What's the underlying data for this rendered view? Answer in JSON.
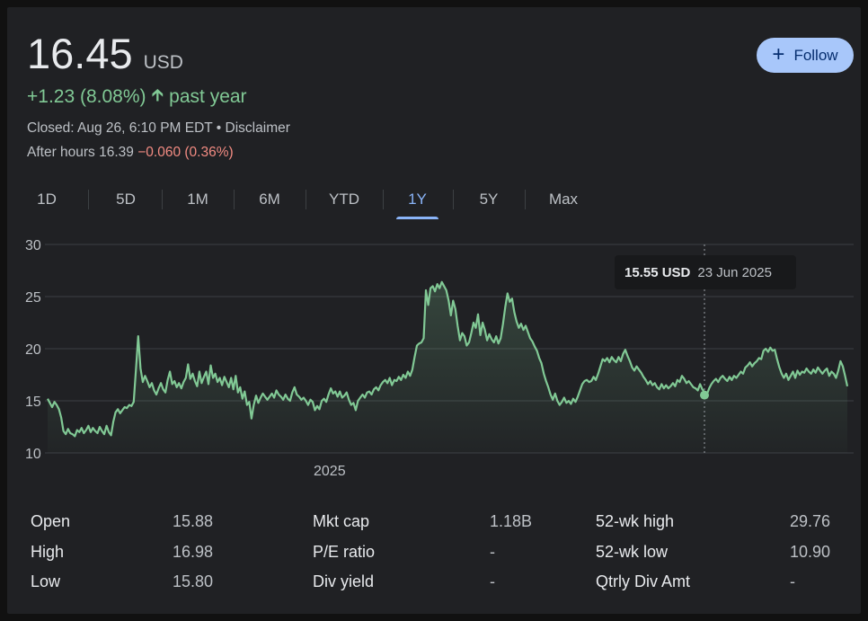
{
  "quote": {
    "price": "16.45",
    "currency": "USD",
    "change": "+1.23 (8.08%)",
    "change_period": "past year",
    "closed_text": "Closed: Aug 26, 6:10 PM EDT",
    "separator": " • ",
    "disclaimer": "Disclaimer",
    "after_hours_label": "After hours 16.39",
    "after_hours_change": "−0.060 (0.36%)"
  },
  "follow_button": {
    "icon": "+",
    "label": "Follow",
    "color": "#a8c7fa"
  },
  "tabs": [
    {
      "label": "1D",
      "active": false
    },
    {
      "label": "5D",
      "active": false
    },
    {
      "label": "1M",
      "active": false
    },
    {
      "label": "6M",
      "active": false
    },
    {
      "label": "YTD",
      "active": false
    },
    {
      "label": "1Y",
      "active": true
    },
    {
      "label": "5Y",
      "active": false
    },
    {
      "label": "Max",
      "active": false
    }
  ],
  "tooltip": {
    "value": "15.55 USD",
    "date": "23 Jun 2025"
  },
  "chart_data": {
    "type": "area",
    "x_labels": [
      "2025"
    ],
    "yticks": [
      30,
      25,
      20,
      15,
      10
    ],
    "ylim": [
      10,
      30
    ],
    "grid": true,
    "line_color": "#81c995",
    "fill_color": "#81c995",
    "series": [
      {
        "values": [
          15.2,
          14.8,
          14.4,
          14.9,
          14.6,
          14.2,
          13.4,
          12.1,
          11.8,
          12.3,
          11.9,
          11.8,
          11.6,
          12.2,
          12.0,
          12.4,
          11.9,
          12.2,
          12.6,
          12.0,
          12.4,
          12.1,
          11.9,
          12.5,
          12.1,
          11.8,
          12.6,
          12.0,
          11.7,
          13.0,
          13.9,
          14.2,
          13.8,
          14.1,
          14.4,
          14.3,
          14.6,
          14.5,
          14.9,
          18.0,
          21.2,
          18.1,
          16.8,
          17.4,
          16.9,
          16.3,
          16.7,
          16.0,
          15.6,
          16.2,
          16.7,
          16.1,
          15.8,
          17.0,
          17.8,
          16.6,
          16.9,
          16.3,
          16.7,
          16.2,
          16.8,
          17.2,
          18.5,
          17.1,
          17.6,
          16.9,
          16.4,
          17.8,
          16.7,
          17.3,
          17.8,
          16.6,
          18.4,
          17.2,
          17.6,
          16.8,
          17.2,
          16.5,
          17.3,
          16.8,
          16.3,
          17.2,
          16.1,
          17.4,
          15.8,
          16.3,
          15.2,
          15.9,
          14.6,
          14.9,
          13.3,
          14.6,
          15.5,
          14.8,
          15.3,
          15.7,
          15.4,
          15.1,
          15.4,
          15.7,
          15.3,
          16.0,
          15.6,
          15.4,
          15.1,
          15.6,
          15.2,
          15.0,
          15.8,
          16.3,
          15.6,
          15.4,
          15.1,
          15.3,
          15.0,
          14.6,
          15.1,
          14.9,
          14.1,
          14.5,
          14.2,
          15.0,
          15.2,
          14.9,
          15.6,
          16.2,
          15.7,
          15.9,
          15.4,
          15.9,
          15.3,
          15.5,
          15.8,
          15.1,
          14.6,
          14.8,
          14.1,
          15.0,
          15.3,
          15.6,
          15.3,
          15.8,
          15.9,
          15.6,
          16.1,
          16.3,
          16.0,
          16.5,
          16.8,
          17.0,
          16.7,
          17.2,
          16.5,
          17.0,
          16.9,
          17.3,
          17.0,
          17.5,
          17.2,
          17.8,
          17.4,
          18.0,
          19.2,
          20.3,
          20.5,
          20.6,
          21.0,
          25.6,
          24.2,
          25.8,
          26.0,
          25.5,
          26.2,
          25.8,
          26.4,
          26.0,
          25.6,
          24.6,
          23.2,
          24.6,
          23.8,
          22.2,
          20.8,
          21.5,
          21.2,
          20.3,
          20.6,
          21.5,
          22.5,
          22.0,
          23.3,
          21.3,
          22.5,
          21.8,
          20.8,
          21.4,
          20.9,
          20.6,
          21.2,
          20.5,
          21.0,
          22.4,
          24.0,
          25.3,
          24.5,
          24.8,
          23.5,
          22.6,
          22.0,
          22.4,
          21.8,
          22.2,
          21.6,
          21.0,
          20.7,
          20.2,
          19.8,
          19.1,
          18.6,
          17.6,
          16.9,
          16.3,
          15.6,
          15.1,
          15.7,
          15.0,
          14.6,
          14.9,
          15.3,
          14.8,
          15.0,
          14.7,
          15.2,
          14.9,
          15.4,
          16.0,
          16.6,
          16.9,
          17.0,
          16.8,
          16.9,
          17.3,
          17.0,
          17.6,
          18.3,
          19.0,
          18.8,
          19.1,
          18.7,
          19.2,
          18.9,
          18.7,
          19.2,
          18.8,
          19.5,
          19.9,
          19.3,
          18.8,
          18.2,
          17.9,
          18.3,
          18.0,
          17.7,
          17.3,
          17.0,
          16.6,
          16.9,
          16.5,
          16.7,
          16.3,
          16.1,
          16.6,
          16.2,
          16.5,
          16.2,
          16.4,
          16.7,
          16.4,
          17.0,
          16.8,
          17.4,
          17.1,
          16.7,
          16.9,
          16.6,
          16.3,
          16.2,
          16.0,
          16.6,
          16.1,
          15.8,
          15.6,
          16.2,
          16.6,
          16.9,
          17.1,
          16.8,
          17.2,
          17.4,
          17.1,
          16.9,
          17.3,
          17.0,
          17.4,
          17.2,
          17.5,
          17.8,
          17.6,
          18.2,
          18.4,
          18.7,
          18.3,
          18.6,
          18.8,
          19.1,
          19.0,
          19.8,
          20.0,
          19.7,
          20.1,
          19.8,
          19.9,
          19.0,
          18.2,
          17.6,
          17.2,
          17.6,
          17.0,
          17.4,
          17.8,
          17.2,
          17.9,
          17.5,
          17.8,
          17.7,
          18.1,
          17.8,
          17.6,
          18.0,
          17.7,
          18.2,
          17.9,
          17.6,
          17.9,
          18.1,
          17.4,
          17.8,
          17.6,
          17.2,
          17.9,
          18.8,
          18.3,
          17.4,
          16.4
        ]
      }
    ]
  },
  "stats": [
    {
      "label": "Open",
      "value": "15.88"
    },
    {
      "label": "High",
      "value": "16.98"
    },
    {
      "label": "Low",
      "value": "15.80"
    },
    {
      "label": "Mkt cap",
      "value": "1.18B"
    },
    {
      "label": "P/E ratio",
      "value": "-"
    },
    {
      "label": "Div yield",
      "value": "-"
    },
    {
      "label": "52-wk high",
      "value": "29.76"
    },
    {
      "label": "52-wk low",
      "value": "10.90"
    },
    {
      "label": "Qtrly Div Amt",
      "value": "-"
    }
  ]
}
